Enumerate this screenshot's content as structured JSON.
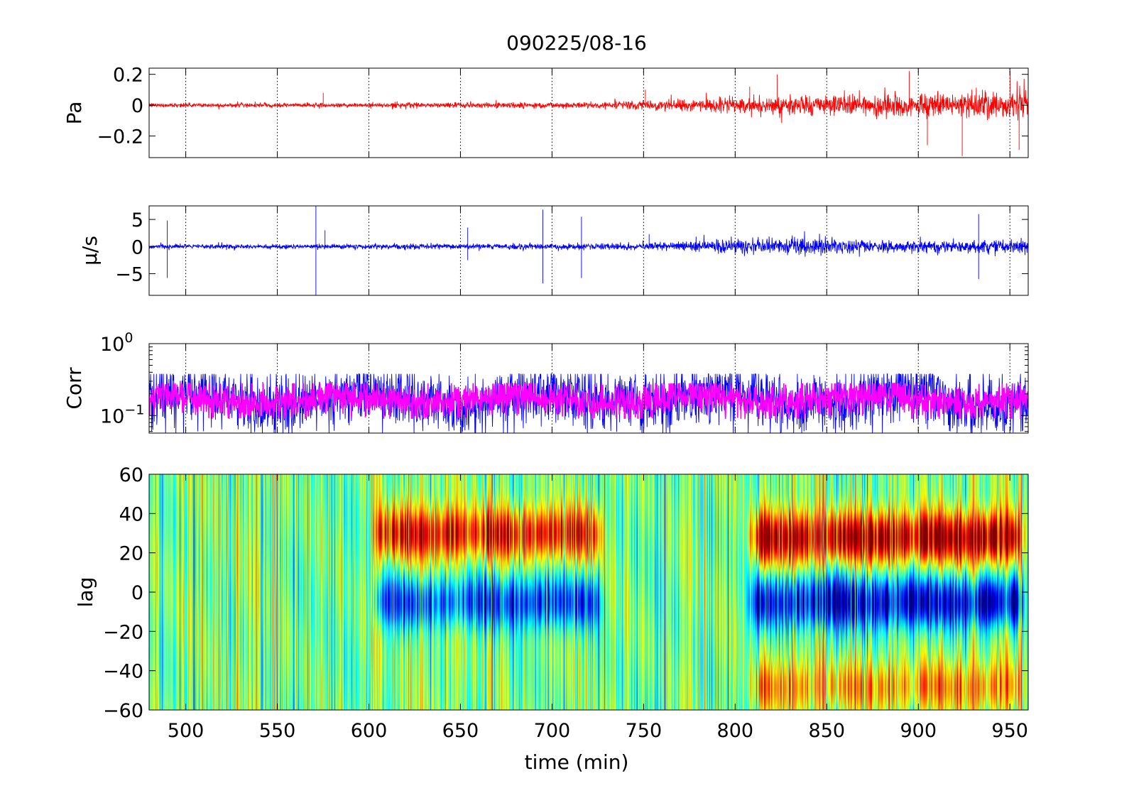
{
  "figure": {
    "title": "090225/08-16",
    "xlabel": "time (min)"
  },
  "x_axis": {
    "range": [
      480,
      960
    ],
    "ticks": [
      500,
      550,
      600,
      650,
      700,
      750,
      800,
      850,
      900,
      950
    ],
    "tick_labels": [
      "500",
      "550",
      "600",
      "650",
      "700",
      "750",
      "800",
      "850",
      "900",
      "950"
    ]
  },
  "chart_data": [
    {
      "type": "line",
      "ylabel": "Pa",
      "ylim": [
        -0.34,
        0.24
      ],
      "yticks": [
        -0.2,
        0,
        0.2
      ],
      "ytick_labels": [
        "−0.2",
        "0",
        "0.2"
      ],
      "color": "#ff0000",
      "grid": "x-dotted",
      "envelope_amplitude": [
        {
          "x": 480,
          "y": 0.012
        },
        {
          "x": 600,
          "y": 0.012
        },
        {
          "x": 700,
          "y": 0.018
        },
        {
          "x": 750,
          "y": 0.025
        },
        {
          "x": 800,
          "y": 0.045
        },
        {
          "x": 850,
          "y": 0.06
        },
        {
          "x": 900,
          "y": 0.065
        },
        {
          "x": 960,
          "y": 0.09
        }
      ],
      "spikes": [
        {
          "x": 575,
          "y": 0.08
        },
        {
          "x": 751,
          "y": 0.1
        },
        {
          "x": 808,
          "y": 0.12
        },
        {
          "x": 823,
          "y": 0.2
        },
        {
          "x": 895,
          "y": 0.22
        },
        {
          "x": 905,
          "y": -0.26
        },
        {
          "x": 924,
          "y": -0.33
        },
        {
          "x": 950,
          "y": 0.22
        },
        {
          "x": 955,
          "y": -0.29
        }
      ]
    },
    {
      "type": "line",
      "ylabel": "μ/s",
      "ylim": [
        -9,
        7.5
      ],
      "yticks": [
        -5,
        0,
        5
      ],
      "ytick_labels": [
        "−5",
        "0",
        "5"
      ],
      "color": "#0000ff",
      "grid": "x-dotted",
      "envelope_amplitude": [
        {
          "x": 480,
          "y": 0.35
        },
        {
          "x": 700,
          "y": 0.45
        },
        {
          "x": 750,
          "y": 0.6
        },
        {
          "x": 800,
          "y": 1.2
        },
        {
          "x": 850,
          "y": 1.3
        },
        {
          "x": 900,
          "y": 0.9
        },
        {
          "x": 960,
          "y": 1.2
        }
      ],
      "spikes": [
        {
          "x": 490,
          "y": 4.8
        },
        {
          "x": 490,
          "y": -5.8
        },
        {
          "x": 571,
          "y": 7.5
        },
        {
          "x": 571,
          "y": -9
        },
        {
          "x": 576,
          "y": 3
        },
        {
          "x": 654,
          "y": 3.5
        },
        {
          "x": 654,
          "y": -2.5
        },
        {
          "x": 695,
          "y": 6.8
        },
        {
          "x": 695,
          "y": -6.8
        },
        {
          "x": 716,
          "y": 5.5
        },
        {
          "x": 716,
          "y": -5.8
        },
        {
          "x": 753,
          "y": 2.3
        },
        {
          "x": 933,
          "y": 6
        },
        {
          "x": 933,
          "y": -6
        }
      ]
    },
    {
      "type": "line",
      "ylabel": "Corr",
      "yscale": "log",
      "ylim": [
        0.057,
        1
      ],
      "ytick_labels": [
        {
          "base": "10",
          "exp": "0"
        },
        {
          "base": "10",
          "exp": "−1"
        }
      ],
      "grid": "x-dotted",
      "series": [
        {
          "color": "#0000ff",
          "center": 0.17,
          "spread_low": 0.06,
          "spread_high": 0.38
        },
        {
          "color": "#ff00ff",
          "center": 0.17,
          "spread_low": 0.1,
          "spread_high": 0.28
        }
      ]
    },
    {
      "type": "heatmap",
      "ylabel": "lag",
      "ylim": [
        -60,
        60
      ],
      "yticks": [
        -60,
        -40,
        -20,
        0,
        20,
        40,
        60
      ],
      "ytick_labels": [
        "−60",
        "−40",
        "−20",
        "0",
        "20",
        "40",
        "60"
      ],
      "colormap": "jet",
      "features": [
        {
          "x_start": 600,
          "x_end": 730,
          "lag_center": 30,
          "sign": "positive",
          "strength": 0.7
        },
        {
          "x_start": 600,
          "x_end": 730,
          "lag_center": -5,
          "sign": "negative",
          "strength": 0.55
        },
        {
          "x_start": 805,
          "x_end": 960,
          "lag_center": 28,
          "sign": "positive",
          "strength": 0.85
        },
        {
          "x_start": 805,
          "x_end": 960,
          "lag_center": -5,
          "sign": "negative",
          "strength": 0.75
        },
        {
          "x_start": 805,
          "x_end": 960,
          "lag_center": -48,
          "sign": "positive",
          "strength": 0.4
        }
      ]
    }
  ]
}
